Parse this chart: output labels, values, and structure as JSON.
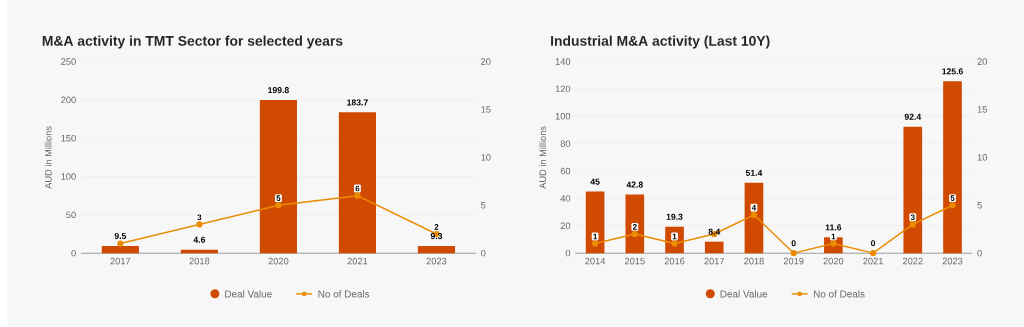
{
  "chart_data": [
    {
      "type": "bar",
      "title": "M&A activity in TMT Sector for selected years",
      "ylabel": "AUD in Millions",
      "categories": [
        "2017",
        "2018",
        "2020",
        "2021",
        "2023"
      ],
      "series": [
        {
          "name": "Deal Value",
          "color": "#d04a02",
          "values": [
            9.5,
            4.6,
            199.8,
            183.7,
            9.3
          ],
          "data_labels": true
        },
        {
          "name": "No of Deals",
          "type": "line",
          "axis": "y2",
          "color": "#eb8c00",
          "values": [
            1,
            3,
            5,
            6,
            2
          ],
          "value_labels": [
            null,
            "3",
            "5",
            "6",
            "2"
          ]
        }
      ],
      "ylim": [
        0,
        250
      ],
      "yticks": [
        0,
        50,
        100,
        150,
        200,
        250
      ],
      "y2lim": [
        0,
        20
      ],
      "y2ticks": [
        0,
        5,
        10,
        15,
        20
      ],
      "grid": "y",
      "legend": "bottom",
      "marker": "circle"
    },
    {
      "type": "bar",
      "title": "Industrial M&A activity (Last 10Y)",
      "ylabel": "AUD in Millions",
      "categories": [
        "2014",
        "2015",
        "2016",
        "2017",
        "2018",
        "2019",
        "2020",
        "2021",
        "2022",
        "2023"
      ],
      "series": [
        {
          "name": "Deal Value",
          "color": "#d04a02",
          "values": [
            45,
            42.8,
            19.3,
            8.4,
            51.4,
            0,
            11.6,
            0,
            92.4,
            125.6
          ],
          "data_labels": true
        },
        {
          "name": "No of Deals",
          "type": "line",
          "axis": "y2",
          "color": "#eb8c00",
          "values": [
            1,
            2,
            1,
            2,
            4,
            0,
            1,
            0,
            3,
            5
          ],
          "value_labels": [
            "1",
            "2",
            "1",
            null,
            "4",
            null,
            "1",
            null,
            "3",
            "5"
          ]
        }
      ],
      "ylim": [
        0,
        140
      ],
      "yticks": [
        0,
        20,
        40,
        60,
        80,
        100,
        120,
        140
      ],
      "y2lim": [
        0,
        20
      ],
      "y2ticks": [
        0,
        5,
        10,
        15,
        20
      ],
      "grid": "y",
      "legend": "bottom",
      "marker": "circle"
    }
  ]
}
